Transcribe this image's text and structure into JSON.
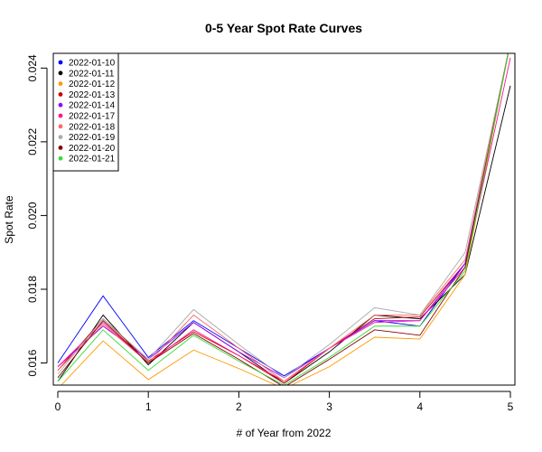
{
  "chart_data": {
    "type": "line",
    "title": "0-5 Year Spot Rate Curves",
    "xlabel": "# of Year from 2022",
    "ylabel": "Spot Rate",
    "xlim": [
      -0.05,
      5.05
    ],
    "ylim": [
      0.0154,
      0.0244
    ],
    "x_ticks": [
      "0",
      "1",
      "2",
      "3",
      "4",
      "5"
    ],
    "y_ticks": [
      "0.016",
      "0.018",
      "0.020",
      "0.022",
      "0.024"
    ],
    "legend_position": "top-left",
    "x": [
      0,
      0.5,
      1,
      1.5,
      2,
      2.5,
      3,
      3.5,
      4,
      4.5,
      5
    ],
    "series": [
      {
        "name": "2022-01-10",
        "color": "#0000ff",
        "values": [
          0.016,
          0.01782,
          0.01615,
          0.01715,
          0.0164,
          0.01565,
          0.0164,
          0.01715,
          0.017,
          0.0187,
          0.0247
        ]
      },
      {
        "name": "2022-01-11",
        "color": "#000000",
        "values": [
          0.0155,
          0.0173,
          0.01595,
          0.0171,
          0.0163,
          0.01545,
          0.0163,
          0.0173,
          0.0172,
          0.0184,
          0.02352
        ]
      },
      {
        "name": "2022-01-12",
        "color": "#ff9900",
        "values": [
          0.0153,
          0.0166,
          0.01555,
          0.01635,
          0.01585,
          0.0153,
          0.0159,
          0.0167,
          0.01665,
          0.0184,
          0.0247
        ]
      },
      {
        "name": "2022-01-13",
        "color": "#cc0000",
        "values": [
          0.0158,
          0.0172,
          0.01605,
          0.01685,
          0.0162,
          0.01545,
          0.0164,
          0.0172,
          0.01725,
          0.0187,
          0.0247
        ]
      },
      {
        "name": "2022-01-14",
        "color": "#9900ff",
        "values": [
          0.0159,
          0.017,
          0.0161,
          0.0171,
          0.0163,
          0.0156,
          0.0164,
          0.01715,
          0.01715,
          0.0187,
          0.0247
        ]
      },
      {
        "name": "2022-01-17",
        "color": "#ff1493",
        "values": [
          0.0159,
          0.0171,
          0.016,
          0.0169,
          0.0162,
          0.0155,
          0.0164,
          0.0171,
          0.01715,
          0.0186,
          0.02428
        ]
      },
      {
        "name": "2022-01-18",
        "color": "#ff6666",
        "values": [
          0.0158,
          0.01705,
          0.016,
          0.0173,
          0.0164,
          0.0155,
          0.0164,
          0.0173,
          0.0173,
          0.0188,
          0.0247
        ]
      },
      {
        "name": "2022-01-19",
        "color": "#aaaaaa",
        "values": [
          0.0157,
          0.0172,
          0.0161,
          0.01745,
          0.0165,
          0.0156,
          0.0165,
          0.0175,
          0.0173,
          0.019,
          0.0247
        ]
      },
      {
        "name": "2022-01-20",
        "color": "#800000",
        "values": [
          0.0156,
          0.01715,
          0.016,
          0.0168,
          0.0161,
          0.01535,
          0.0161,
          0.0169,
          0.01675,
          0.0186,
          0.0247
        ]
      },
      {
        "name": "2022-01-21",
        "color": "#33dd33",
        "values": [
          0.0155,
          0.0169,
          0.0158,
          0.01675,
          0.01605,
          0.0154,
          0.01615,
          0.017,
          0.017,
          0.0185,
          0.0247
        ]
      }
    ]
  }
}
